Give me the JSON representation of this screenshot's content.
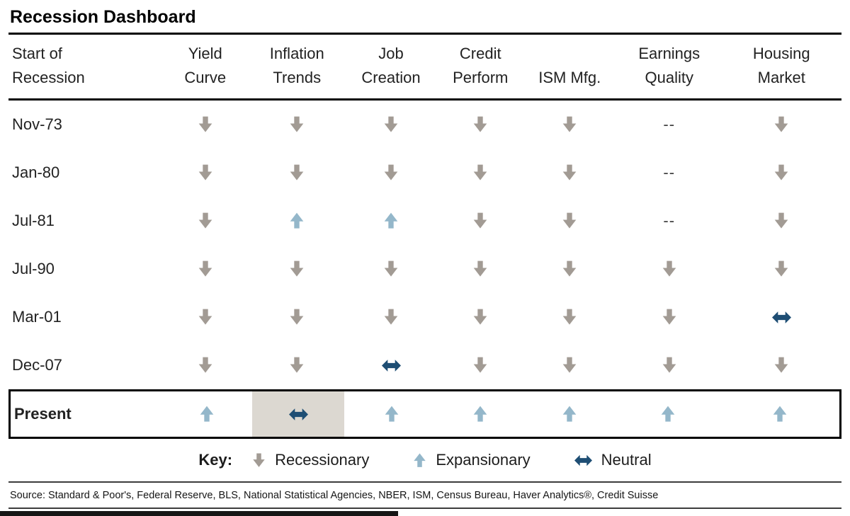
{
  "title": "Recession Dashboard",
  "dash_text": "--",
  "columns": [
    {
      "lines": [
        "Start of",
        "Recession"
      ]
    },
    {
      "lines": [
        "Yield",
        "Curve"
      ]
    },
    {
      "lines": [
        "Inflation",
        "Trends"
      ]
    },
    {
      "lines": [
        "Job",
        "Creation"
      ]
    },
    {
      "lines": [
        "Credit",
        "Perform"
      ]
    },
    {
      "lines": [
        "ISM Mfg."
      ]
    },
    {
      "lines": [
        "Earnings",
        "Quality"
      ]
    },
    {
      "lines": [
        "Housing",
        "Market"
      ]
    }
  ],
  "rows": [
    {
      "label": "Nov-73",
      "cells": [
        "down",
        "down",
        "down",
        "down",
        "down",
        "dash",
        "down"
      ]
    },
    {
      "label": "Jan-80",
      "cells": [
        "down",
        "down",
        "down",
        "down",
        "down",
        "dash",
        "down"
      ]
    },
    {
      "label": "Jul-81",
      "cells": [
        "down",
        "up",
        "up",
        "down",
        "down",
        "dash",
        "down"
      ]
    },
    {
      "label": "Jul-90",
      "cells": [
        "down",
        "down",
        "down",
        "down",
        "down",
        "down",
        "down"
      ]
    },
    {
      "label": "Mar-01",
      "cells": [
        "down",
        "down",
        "down",
        "down",
        "down",
        "down",
        "neutral"
      ]
    },
    {
      "label": "Dec-07",
      "cells": [
        "down",
        "down",
        "neutral",
        "down",
        "down",
        "down",
        "down"
      ]
    },
    {
      "label": "Present",
      "bold": true,
      "boxed": true,
      "highlight_col": 1,
      "cells": [
        "up",
        "neutral",
        "up",
        "up",
        "up",
        "up",
        "up"
      ]
    }
  ],
  "legend": {
    "label": "Key:",
    "items": [
      {
        "icon": "down",
        "label": "Recessionary"
      },
      {
        "icon": "up",
        "label": "Expansionary"
      },
      {
        "icon": "neutral",
        "label": "Neutral"
      }
    ]
  },
  "source": "Source: Standard & Poor's, Federal Reserve, BLS, National Statistical Agencies, NBER, ISM, Census Bureau, Haver Analytics®, Credit Suisse",
  "colors": {
    "recessionary": "#a29b94",
    "expansionary": "#94b7ca",
    "neutral": "#1e4e74",
    "highlight": "#dcd8d1"
  },
  "chart_data": {
    "type": "table",
    "title": "Recession Dashboard",
    "columns": [
      "Start of Recession",
      "Yield Curve",
      "Inflation Trends",
      "Job Creation",
      "Credit Perform",
      "ISM Mfg.",
      "Earnings Quality",
      "Housing Market"
    ],
    "rows": [
      [
        "Nov-73",
        "Recessionary",
        "Recessionary",
        "Recessionary",
        "Recessionary",
        "Recessionary",
        "--",
        "Recessionary"
      ],
      [
        "Jan-80",
        "Recessionary",
        "Recessionary",
        "Recessionary",
        "Recessionary",
        "Recessionary",
        "--",
        "Recessionary"
      ],
      [
        "Jul-81",
        "Recessionary",
        "Expansionary",
        "Expansionary",
        "Recessionary",
        "Recessionary",
        "--",
        "Recessionary"
      ],
      [
        "Jul-90",
        "Recessionary",
        "Recessionary",
        "Recessionary",
        "Recessionary",
        "Recessionary",
        "Recessionary",
        "Recessionary"
      ],
      [
        "Mar-01",
        "Recessionary",
        "Recessionary",
        "Recessionary",
        "Recessionary",
        "Recessionary",
        "Recessionary",
        "Neutral"
      ],
      [
        "Dec-07",
        "Recessionary",
        "Recessionary",
        "Neutral",
        "Recessionary",
        "Recessionary",
        "Recessionary",
        "Recessionary"
      ],
      [
        "Present",
        "Expansionary",
        "Neutral",
        "Expansionary",
        "Expansionary",
        "Expansionary",
        "Expansionary",
        "Expansionary"
      ]
    ],
    "legend": {
      "Recessionary": "gray down block arrow",
      "Expansionary": "light blue up block arrow",
      "Neutral": "dark blue horizontal double arrow"
    },
    "notes": "Present row outlined in black; Present/Inflation Trends cell shaded beige-gray"
  }
}
